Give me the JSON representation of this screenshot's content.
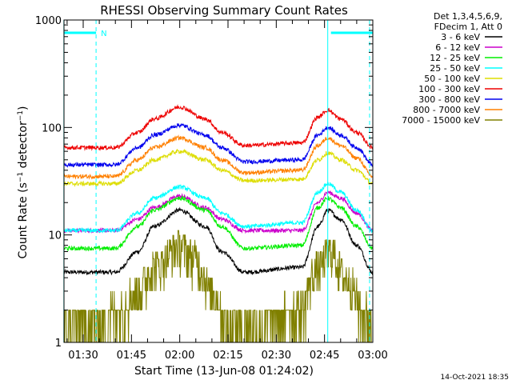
{
  "chart_data": {
    "type": "line",
    "title": "RHESSI Observing Summary Count Rates",
    "xlabel": "Start Time (13-Jun-08 01:24:02)",
    "ylabel": {
      "prefix": "Count Rate (s",
      "sup1": "−1",
      "middle": " detector",
      "sup2": "−1",
      "suffix": ")"
    },
    "y_scale": "log",
    "xlim": [
      "01:24:02",
      "03:00:00"
    ],
    "ylim": [
      1,
      1000
    ],
    "x_ticks": [
      "01:30",
      "01:45",
      "02:00",
      "02:15",
      "02:30",
      "02:45",
      "03:00"
    ],
    "y_ticks": [
      "1",
      "10",
      "100",
      "1000"
    ],
    "legend_header": [
      "Det 1,3,4,5,6,9,",
      "FDecim 1, Att 0"
    ],
    "legend_position": "top-right, outside plot",
    "series": [
      {
        "name": "3 - 6 keV",
        "color": "#000000",
        "x": [
          "01:24",
          "01:40",
          "01:47",
          "01:52",
          "02:00",
          "02:08",
          "02:13",
          "02:20",
          "02:38",
          "02:43",
          "02:46",
          "02:50",
          "02:55",
          "03:00"
        ],
        "y": [
          4.5,
          4.5,
          7,
          12,
          17,
          12,
          7,
          4.5,
          5,
          12,
          17,
          14,
          8,
          4.5
        ]
      },
      {
        "name": "6 - 12 keV",
        "color": "#cc00cc",
        "x": [
          "01:24",
          "01:40",
          "01:47",
          "01:52",
          "02:00",
          "02:08",
          "02:13",
          "02:20",
          "02:38",
          "02:43",
          "02:46",
          "02:50",
          "02:55",
          "03:00"
        ],
        "y": [
          11,
          11,
          14,
          18,
          23,
          18,
          14,
          11,
          11,
          20,
          25,
          22,
          16,
          11
        ]
      },
      {
        "name": "12 - 25 keV",
        "color": "#00ee00",
        "x": [
          "01:24",
          "01:40",
          "01:47",
          "01:52",
          "02:00",
          "02:08",
          "02:13",
          "02:20",
          "02:38",
          "02:43",
          "02:46",
          "02:50",
          "02:55",
          "03:00"
        ],
        "y": [
          7.5,
          7.5,
          12,
          17,
          22,
          17,
          12,
          7.5,
          8,
          18,
          22,
          18,
          12,
          7.5
        ]
      },
      {
        "name": "25 - 50 keV",
        "color": "#00ffff",
        "x": [
          "01:24",
          "01:40",
          "01:47",
          "01:52",
          "02:00",
          "02:08",
          "02:13",
          "02:20",
          "02:38",
          "02:43",
          "02:46",
          "02:50",
          "02:55",
          "03:00"
        ],
        "y": [
          11,
          11,
          16,
          22,
          28,
          22,
          16,
          12,
          13,
          25,
          30,
          25,
          17,
          11
        ]
      },
      {
        "name": "50 - 100 keV",
        "color": "#dddd00",
        "x": [
          "01:24",
          "01:40",
          "01:47",
          "01:52",
          "02:00",
          "02:08",
          "02:13",
          "02:20",
          "02:38",
          "02:43",
          "02:46",
          "02:50",
          "02:55",
          "03:00"
        ],
        "y": [
          30,
          30,
          40,
          50,
          60,
          50,
          40,
          32,
          33,
          50,
          58,
          50,
          40,
          30
        ]
      },
      {
        "name": "100 - 300 keV",
        "color": "#ee0000",
        "x": [
          "01:24",
          "01:40",
          "01:47",
          "01:52",
          "02:00",
          "02:08",
          "02:13",
          "02:20",
          "02:38",
          "02:43",
          "02:46",
          "02:50",
          "02:55",
          "03:00"
        ],
        "y": [
          65,
          65,
          90,
          120,
          155,
          120,
          90,
          68,
          72,
          125,
          145,
          120,
          90,
          65
        ]
      },
      {
        "name": "300 - 800 keV",
        "color": "#0000ee",
        "x": [
          "01:24",
          "01:40",
          "01:47",
          "01:52",
          "02:00",
          "02:08",
          "02:13",
          "02:20",
          "02:38",
          "02:43",
          "02:46",
          "02:50",
          "02:55",
          "03:00"
        ],
        "y": [
          45,
          45,
          65,
          85,
          105,
          85,
          65,
          48,
          50,
          85,
          100,
          85,
          65,
          45
        ]
      },
      {
        "name": "800 - 7000 keV",
        "color": "#ff8000",
        "x": [
          "01:24",
          "01:40",
          "01:47",
          "01:52",
          "02:00",
          "02:08",
          "02:13",
          "02:20",
          "02:38",
          "02:43",
          "02:46",
          "02:50",
          "02:55",
          "03:00"
        ],
        "y": [
          35,
          35,
          50,
          65,
          80,
          65,
          50,
          38,
          40,
          68,
          80,
          68,
          52,
          35
        ]
      },
      {
        "name": "7000 - 15000 keV",
        "color": "#808000",
        "x": [
          "01:24",
          "01:34",
          "01:40",
          "01:47",
          "01:52",
          "02:00",
          "02:05",
          "02:10",
          "02:15",
          "02:25",
          "02:37",
          "02:43",
          "02:47",
          "02:52",
          "02:57",
          "03:00"
        ],
        "y": [
          1.5,
          1.5,
          2,
          3,
          5,
          8,
          6,
          3,
          1.5,
          1.5,
          2,
          5,
          7,
          4,
          2,
          1.5
        ]
      }
    ],
    "annotations": {
      "top_bar_label": "N",
      "top_bars": [
        [
          "01:24",
          "01:34"
        ],
        [
          "02:47",
          "03:00"
        ]
      ],
      "vertical_lines": [
        {
          "x": "01:24",
          "style": "solid"
        },
        {
          "x": "01:34",
          "style": "dashed"
        },
        {
          "x": "02:46",
          "style": "solid"
        },
        {
          "x": "02:59",
          "style": "dashed"
        }
      ],
      "annotation_color": "#00ffff"
    },
    "footer": "14-Oct-2021 18:35"
  }
}
